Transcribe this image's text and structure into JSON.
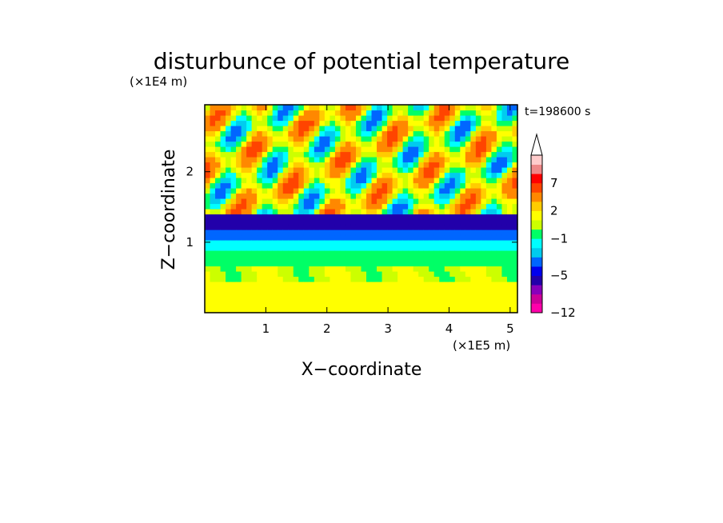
{
  "chart_data": {
    "type": "heatmap",
    "title": "disturbunce of potential temperature",
    "time_label": "t=198600 s",
    "xlabel": "X−coordinate",
    "ylabel": "Z−coordinate",
    "x_unit": "(×1E5 m)",
    "y_unit": "(×1E4 m)",
    "xlim": [
      0,
      5.12
    ],
    "ylim": [
      0,
      2.95
    ],
    "x_ticks": [
      {
        "value": 1,
        "label": "1"
      },
      {
        "value": 2,
        "label": "2"
      },
      {
        "value": 3,
        "label": "3"
      },
      {
        "value": 4,
        "label": "4"
      },
      {
        "value": 5,
        "label": "5"
      }
    ],
    "y_ticks": [
      {
        "value": 1,
        "label": "1"
      },
      {
        "value": 2,
        "label": "2"
      }
    ],
    "colorbar": {
      "levels": [
        -12,
        -10,
        -8,
        -6,
        -5,
        -4,
        -3,
        -2,
        -1,
        0,
        1,
        2,
        3,
        5,
        7,
        9,
        12
      ],
      "colors": [
        "#ff00aa",
        "#cc0099",
        "#8800bb",
        "#2200aa",
        "#0000ee",
        "#0066ff",
        "#00ccee",
        "#00ffff",
        "#00ff66",
        "#ccff00",
        "#ffff00",
        "#ffcc00",
        "#ff8800",
        "#ff4400",
        "#ff0000",
        "#ee8888",
        "#ffcccc"
      ],
      "tick_labels": [
        {
          "value": 7,
          "label": "7"
        },
        {
          "value": 2,
          "label": "2"
        },
        {
          "value": -1,
          "label": "−1"
        },
        {
          "value": -5,
          "label": "−5"
        },
        {
          "value": -12,
          "label": "−12"
        }
      ]
    },
    "grid": false,
    "legend": "colorbar-right"
  }
}
